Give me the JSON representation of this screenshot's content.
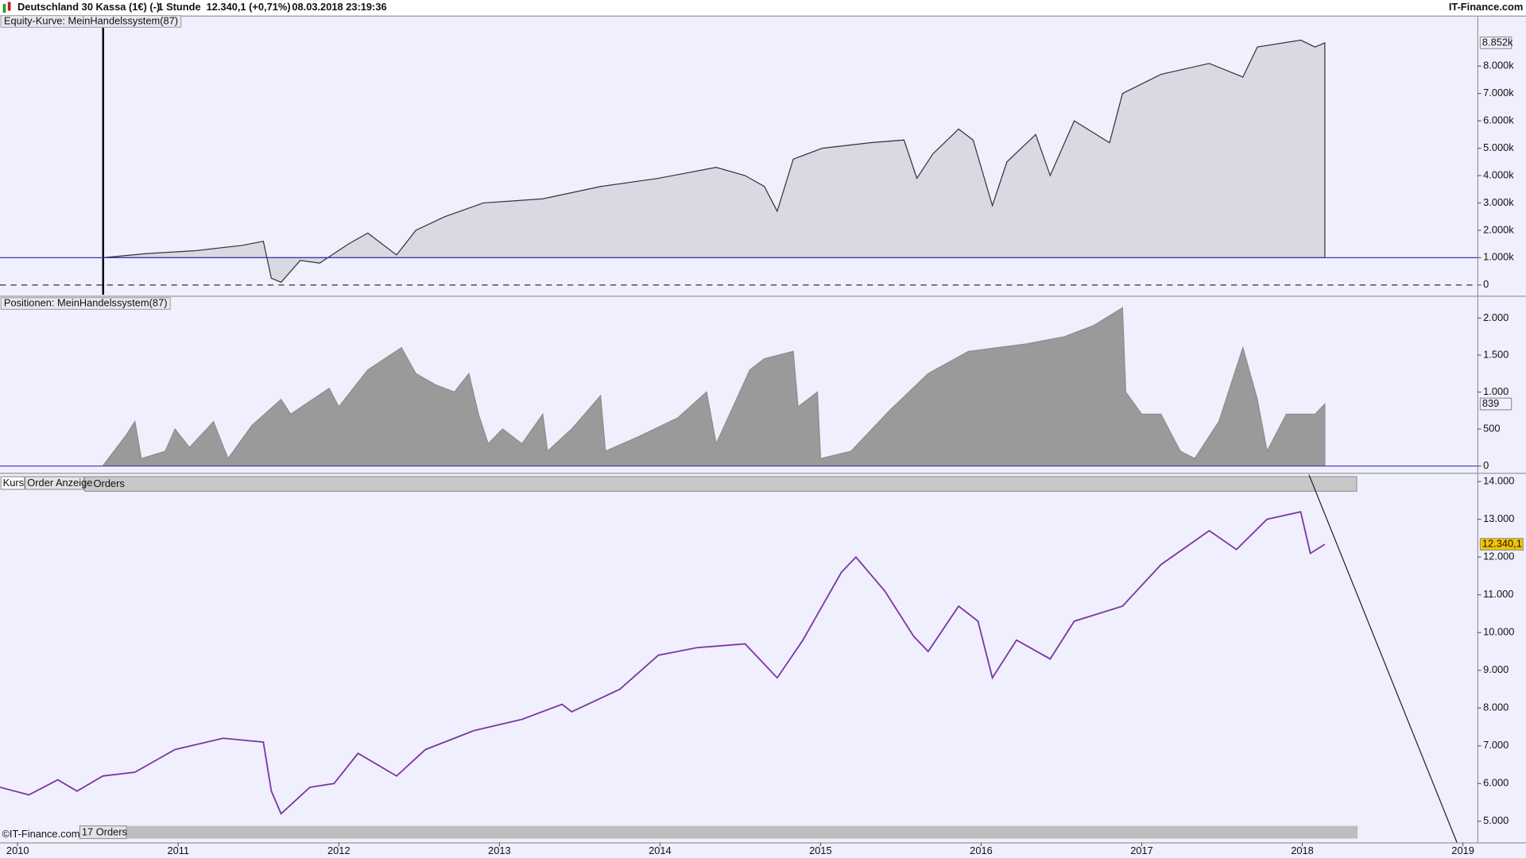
{
  "header": {
    "instrument": "Deutschland 30 Kassa (1€) (-)",
    "interval": "1 Stunde",
    "quote": "12.340,1 (+0,71%)",
    "timestamp": "08.03.2018 23:19:36",
    "brand": "IT-Finance.com"
  },
  "tabs": {
    "kurs": "Kurs",
    "orders_tab": "Order Anzeige",
    "orders_strip": "Orders"
  },
  "footer": {
    "copyright": "©IT-Finance.com",
    "order_count": "17 Orders"
  },
  "chart_data": [
    {
      "type": "area",
      "title": "Equity-Kurve: MeinHandelssystem(87)",
      "color": "#333333",
      "fill": "#d9d9e3",
      "baseline": 1000,
      "baseline_color": "#3a3ab0",
      "zero_line": true,
      "x": [
        2010.53,
        2010.8,
        2011.1,
        2011.4,
        2011.53,
        2011.58,
        2011.64,
        2011.76,
        2011.88,
        2012.06,
        2012.18,
        2012.36,
        2012.48,
        2012.66,
        2012.9,
        2013.27,
        2013.63,
        2013.99,
        2014.35,
        2014.53,
        2014.65,
        2014.73,
        2014.83,
        2015.01,
        2015.31,
        2015.52,
        2015.6,
        2015.7,
        2015.86,
        2015.95,
        2016.07,
        2016.16,
        2016.34,
        2016.43,
        2016.58,
        2016.8,
        2016.88,
        2017.12,
        2017.42,
        2017.63,
        2017.72,
        2017.99,
        2018.08,
        2018.14
      ],
      "values": [
        1000,
        1150,
        1250,
        1450,
        1600,
        250,
        100,
        900,
        800,
        1500,
        1900,
        1100,
        2000,
        2500,
        3000,
        3150,
        3600,
        3900,
        4300,
        4000,
        3600,
        2700,
        4600,
        5000,
        5200,
        5300,
        3900,
        4800,
        5700,
        5300,
        2900,
        4500,
        5500,
        4000,
        6000,
        5200,
        7000,
        7700,
        8100,
        7600,
        8700,
        8950,
        8700,
        8852
      ],
      "current": {
        "value": 8852,
        "label": "8.852k"
      },
      "xlim": [
        2009.89,
        2019.09
      ],
      "ylim": [
        -320,
        9350
      ],
      "yticks": [
        0,
        {
          "value": 1000,
          "label": "1.000k"
        },
        {
          "value": 2000,
          "label": "2.000k"
        },
        {
          "value": 3000,
          "label": "3.000k"
        },
        {
          "value": 4000,
          "label": "4.000k"
        },
        {
          "value": 5000,
          "label": "5.000k"
        },
        {
          "value": 6000,
          "label": "6.000k"
        },
        {
          "value": 7000,
          "label": "7.000k"
        },
        {
          "value": 8000,
          "label": "8.000k"
        }
      ]
    },
    {
      "type": "area",
      "title": "Positionen: MeinHandelssystem(87)",
      "color": "#8c8c8c",
      "fill": "#9a9a9a",
      "baseline": 0,
      "baseline_color": "#3a3ab0",
      "zero_line": false,
      "x": [
        2010.53,
        2010.67,
        2010.73,
        2010.77,
        2010.92,
        2010.98,
        2011.07,
        2011.22,
        2011.31,
        2011.46,
        2011.64,
        2011.7,
        2011.94,
        2012.0,
        2012.18,
        2012.39,
        2012.48,
        2012.6,
        2012.72,
        2012.81,
        2012.87,
        2012.93,
        2013.02,
        2013.14,
        2013.27,
        2013.3,
        2013.45,
        2013.63,
        2013.66,
        2013.87,
        2014.11,
        2014.29,
        2014.35,
        2014.56,
        2014.65,
        2014.83,
        2014.86,
        2014.98,
        2015.0,
        2015.19,
        2015.43,
        2015.67,
        2015.92,
        2016.1,
        2016.28,
        2016.52,
        2016.7,
        2016.88,
        2016.9,
        2017.0,
        2017.12,
        2017.24,
        2017.33,
        2017.48,
        2017.63,
        2017.72,
        2017.78,
        2017.9,
        2018.08,
        2018.14
      ],
      "values": [
        0,
        400,
        600,
        100,
        200,
        500,
        250,
        600,
        100,
        550,
        900,
        700,
        1050,
        800,
        1300,
        1600,
        1250,
        1100,
        1000,
        1250,
        700,
        300,
        500,
        300,
        700,
        200,
        500,
        950,
        200,
        400,
        650,
        1000,
        300,
        1300,
        1450,
        1550,
        800,
        1000,
        100,
        200,
        750,
        1250,
        1550,
        1600,
        1650,
        1750,
        1900,
        2140,
        1000,
        700,
        700,
        200,
        100,
        600,
        1600,
        900,
        200,
        700,
        700,
        839
      ],
      "current": {
        "value": 839,
        "label": "839"
      },
      "xlim": [
        2009.89,
        2019.09
      ],
      "ylim": [
        -26,
        2290
      ],
      "yticks": [
        0,
        500,
        {
          "value": 1000,
          "label": "1.000"
        },
        {
          "value": 1500,
          "label": "1.500"
        },
        {
          "value": 2000,
          "label": "2.000"
        }
      ]
    },
    {
      "type": "line",
      "color": "#7a3aa0",
      "x": [
        2009.89,
        2010.07,
        2010.25,
        2010.37,
        2010.53,
        2010.73,
        2010.98,
        2011.28,
        2011.53,
        2011.58,
        2011.64,
        2011.82,
        2011.97,
        2012.12,
        2012.36,
        2012.54,
        2012.84,
        2013.14,
        2013.39,
        2013.45,
        2013.75,
        2013.99,
        2014.23,
        2014.53,
        2014.73,
        2014.89,
        2015.13,
        2015.22,
        2015.4,
        2015.58,
        2015.67,
        2015.86,
        2015.98,
        2016.07,
        2016.22,
        2016.43,
        2016.58,
        2016.88,
        2017.12,
        2017.42,
        2017.59,
        2017.78,
        2017.99,
        2018.05,
        2018.14
      ],
      "values": [
        5900,
        5700,
        6100,
        5800,
        6200,
        6300,
        6900,
        7200,
        7100,
        5800,
        5200,
        5900,
        6000,
        6800,
        6200,
        6900,
        7400,
        7700,
        8100,
        7900,
        8500,
        9400,
        9600,
        9700,
        8800,
        9800,
        11600,
        12000,
        11100,
        9900,
        9500,
        10700,
        10300,
        8800,
        9800,
        9300,
        10300,
        10700,
        11800,
        12700,
        12200,
        13000,
        13200,
        12100,
        12340.1
      ],
      "current": {
        "value": 12340.1,
        "label": "12.340,1"
      },
      "xlim": [
        2009.89,
        2019.09
      ],
      "ylim": [
        4440,
        14130
      ],
      "xticks": [
        2010,
        2011,
        2012,
        2013,
        2014,
        2015,
        2016,
        2017,
        2018,
        2019
      ],
      "yticks": [
        {
          "value": 5000,
          "label": "5.000"
        },
        {
          "value": 6000,
          "label": "6.000"
        },
        {
          "value": 7000,
          "label": "7.000"
        },
        {
          "value": 8000,
          "label": "8.000"
        },
        {
          "value": 9000,
          "label": "9.000"
        },
        {
          "value": 10000,
          "label": "10.000"
        },
        {
          "value": 11000,
          "label": "11.000"
        },
        {
          "value": 12000,
          "label": "12.000"
        },
        {
          "value": 13000,
          "label": "13.000"
        },
        {
          "value": 14000,
          "label": "14.000"
        }
      ]
    }
  ]
}
